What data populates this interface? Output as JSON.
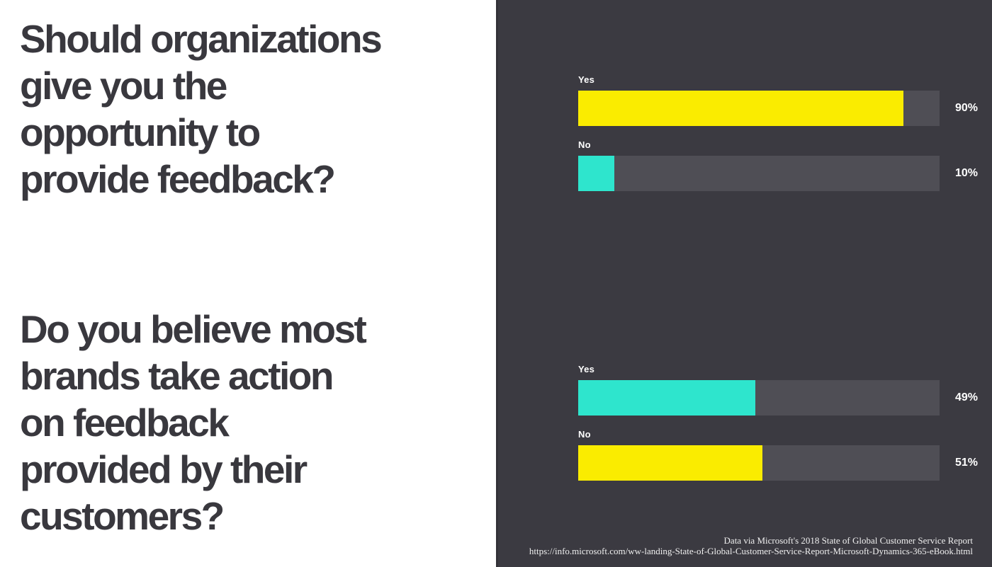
{
  "colors": {
    "panel_bg": "#3b3a41",
    "question_text": "#39383e",
    "label_text": "#ffffff",
    "footer_text": "#efefef",
    "yellow": "#faec00",
    "teal": "#2ee5cd",
    "track": "#4f4e55"
  },
  "questions": [
    {
      "text": "Should organizations give you the opportunity to provide feedback?",
      "lines": [
        "Should organizations",
        "give you the",
        "opportunity to",
        "provide feedback?"
      ]
    },
    {
      "text": "Do you believe most brands take action on feedback provided by their customers?",
      "lines": [
        "Do you believe most",
        "brands take action",
        "on feedback",
        "provided by their",
        "customers?"
      ]
    }
  ],
  "chart_data": [
    {
      "type": "bar",
      "orientation": "horizontal",
      "title": "Should organizations give you the opportunity to provide feedback?",
      "categories": [
        "Yes",
        "No"
      ],
      "values": [
        90,
        10
      ],
      "value_labels": [
        "90%",
        "10%"
      ],
      "bar_colors": [
        "#faec00",
        "#2ee5cd"
      ],
      "track_color": "#4f4e55",
      "xlim": [
        0,
        100
      ],
      "grid": false,
      "legend": "none"
    },
    {
      "type": "bar",
      "orientation": "horizontal",
      "title": "Do you believe most brands take action on feedback provided by their customers?",
      "categories": [
        "Yes",
        "No"
      ],
      "values": [
        49,
        51
      ],
      "value_labels": [
        "49%",
        "51%"
      ],
      "bar_colors": [
        "#2ee5cd",
        "#faec00"
      ],
      "track_color": "#4f4e55",
      "xlim": [
        0,
        100
      ],
      "grid": false,
      "legend": "none"
    }
  ],
  "footer": {
    "line1": "Data via Microsoft's 2018 State of Global Customer Service Report",
    "line2": "https://info.microsoft.com/ww-landing-State-of-Global-Customer-Service-Report-Microsoft-Dynamics-365-eBook.html"
  }
}
